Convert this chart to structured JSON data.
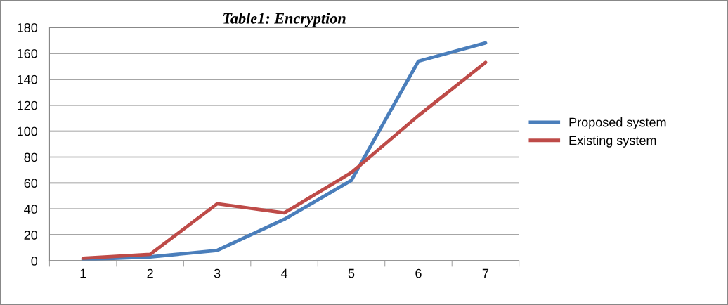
{
  "chart_data": {
    "type": "line",
    "title": "Table1: Encryption",
    "categories": [
      "1",
      "2",
      "3",
      "4",
      "5",
      "6",
      "7"
    ],
    "series": [
      {
        "name": "Proposed system",
        "color": "#4a7ebb",
        "values": [
          1,
          3,
          8,
          32,
          62,
          154,
          168
        ]
      },
      {
        "name": "Existing system",
        "color": "#be4b48",
        "values": [
          2,
          5,
          44,
          37,
          68,
          112,
          153
        ]
      }
    ],
    "ylim": [
      0,
      180
    ],
    "yticks": [
      0,
      20,
      40,
      60,
      80,
      100,
      120,
      140,
      160,
      180
    ],
    "grid": "y",
    "legend": "right",
    "marker": "none",
    "line_style": "solid"
  }
}
